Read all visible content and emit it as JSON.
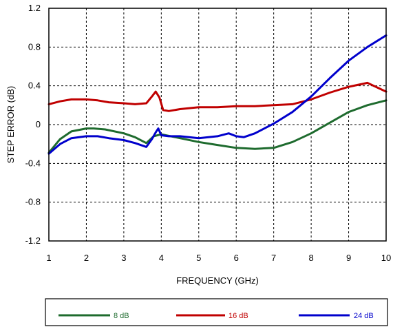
{
  "chart_data": {
    "type": "line",
    "xlabel": "FREQUENCY (GHz)",
    "ylabel": "STEP ERROR (dB)",
    "xlim": [
      1,
      10
    ],
    "ylim": [
      -1.2,
      1.2
    ],
    "xticks": [
      1,
      2,
      3,
      4,
      5,
      6,
      7,
      8,
      9,
      10
    ],
    "xtick_labels": [
      "1",
      "2",
      "3",
      "4",
      "5",
      "6",
      "7",
      "8",
      "9",
      "10"
    ],
    "yticks": [
      -1.2,
      -0.8,
      -0.4,
      0,
      0.4,
      0.8,
      1.2
    ],
    "ytick_labels": [
      "-1.2",
      "-0.8",
      "-0.4",
      "0",
      "0.4",
      "0.8",
      "1.2"
    ],
    "grid": true,
    "legend_position": "bottom",
    "series": [
      {
        "name": "8 dB",
        "color": "#1e6b2e",
        "x": [
          1,
          1.3,
          1.6,
          2,
          2.2,
          2.5,
          3,
          3.3,
          3.6,
          3.8,
          4,
          4.5,
          5,
          5.5,
          6,
          6.5,
          7,
          7.5,
          8,
          8.5,
          9,
          9.5,
          10
        ],
        "y": [
          -0.29,
          -0.15,
          -0.07,
          -0.04,
          -0.04,
          -0.05,
          -0.09,
          -0.13,
          -0.19,
          -0.12,
          -0.1,
          -0.14,
          -0.18,
          -0.21,
          -0.24,
          -0.25,
          -0.24,
          -0.18,
          -0.09,
          0.02,
          0.13,
          0.2,
          0.25
        ]
      },
      {
        "name": "16 dB",
        "color": "#c00000",
        "x": [
          1,
          1.3,
          1.6,
          2,
          2.3,
          2.6,
          3,
          3.3,
          3.6,
          3.75,
          3.85,
          3.95,
          4.05,
          4.2,
          4.5,
          5,
          5.5,
          6,
          6.5,
          7,
          7.5,
          8,
          8.5,
          9,
          9.5,
          10
        ],
        "y": [
          0.21,
          0.24,
          0.26,
          0.26,
          0.25,
          0.23,
          0.22,
          0.21,
          0.22,
          0.29,
          0.34,
          0.28,
          0.15,
          0.14,
          0.16,
          0.18,
          0.18,
          0.19,
          0.19,
          0.2,
          0.21,
          0.26,
          0.33,
          0.39,
          0.43,
          0.34
        ]
      },
      {
        "name": "24 dB",
        "color": "#0000cc",
        "x": [
          1,
          1.3,
          1.6,
          2,
          2.3,
          2.6,
          3,
          3.3,
          3.6,
          3.75,
          3.85,
          3.92,
          4,
          4.2,
          4.5,
          5,
          5.5,
          5.8,
          6,
          6.2,
          6.5,
          7,
          7.5,
          8,
          8.5,
          9,
          9.5,
          10
        ],
        "y": [
          -0.3,
          -0.2,
          -0.14,
          -0.12,
          -0.12,
          -0.14,
          -0.16,
          -0.19,
          -0.23,
          -0.15,
          -0.08,
          -0.04,
          -0.11,
          -0.12,
          -0.12,
          -0.14,
          -0.12,
          -0.09,
          -0.12,
          -0.13,
          -0.09,
          0.01,
          0.13,
          0.29,
          0.48,
          0.66,
          0.8,
          0.92
        ]
      }
    ]
  }
}
